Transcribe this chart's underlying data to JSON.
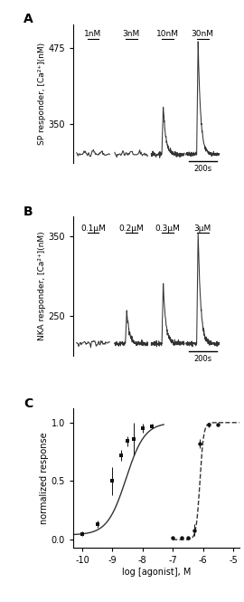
{
  "panel_A_label": "A",
  "panel_B_label": "B",
  "panel_C_label": "C",
  "sp_labels": [
    "1nM",
    "3nM",
    "10nM",
    "30nM"
  ],
  "nka_labels": [
    "0.1μM",
    "0.2μM",
    "0.3μM",
    "3μM"
  ],
  "sp_yticks": [
    350,
    475
  ],
  "sp_ylabel": "SP responder, [Ca²⁺](nM)",
  "nka_yticks": [
    250,
    350
  ],
  "nka_ylabel": "NKA responder, [Ca²⁺](nM)",
  "sp_baseline": 300,
  "sp_peaks": [
    0,
    0,
    80,
    185
  ],
  "nka_baseline": 215,
  "nka_peaks": [
    0,
    40,
    75,
    140
  ],
  "scale_bar_label": "200s",
  "curve_sp_x": [
    -10,
    -9.5,
    -9.0,
    -8.7,
    -8.5,
    -8.3,
    -8.0,
    -7.7
  ],
  "curve_sp_y": [
    0.05,
    0.13,
    0.5,
    0.72,
    0.84,
    0.86,
    0.95,
    0.97
  ],
  "curve_sp_err": [
    0.02,
    0.03,
    0.12,
    0.05,
    0.04,
    0.14,
    0.04,
    0.02
  ],
  "curve_nka_x": [
    -7.0,
    -6.7,
    -6.5,
    -6.3,
    -6.1,
    -5.8,
    -5.5
  ],
  "curve_nka_y": [
    0.02,
    0.02,
    0.02,
    0.08,
    0.82,
    0.98,
    0.98
  ],
  "curve_nka_err": [
    0.0,
    0.0,
    0.0,
    0.05,
    0.04,
    0.02,
    0.0
  ],
  "xlabel_C": "log [agonist], M",
  "ylabel_C": "normalized response",
  "ylim_C": [
    -0.07,
    1.12
  ],
  "xlim_C": [
    -10.3,
    -4.8
  ],
  "xticks_C": [
    -10,
    -9,
    -8,
    -7,
    -6,
    -5
  ],
  "yticks_C": [
    0.0,
    0.5,
    1.0
  ],
  "line_color": "#333333",
  "marker_color": "#111111",
  "bg_color": "#ffffff"
}
